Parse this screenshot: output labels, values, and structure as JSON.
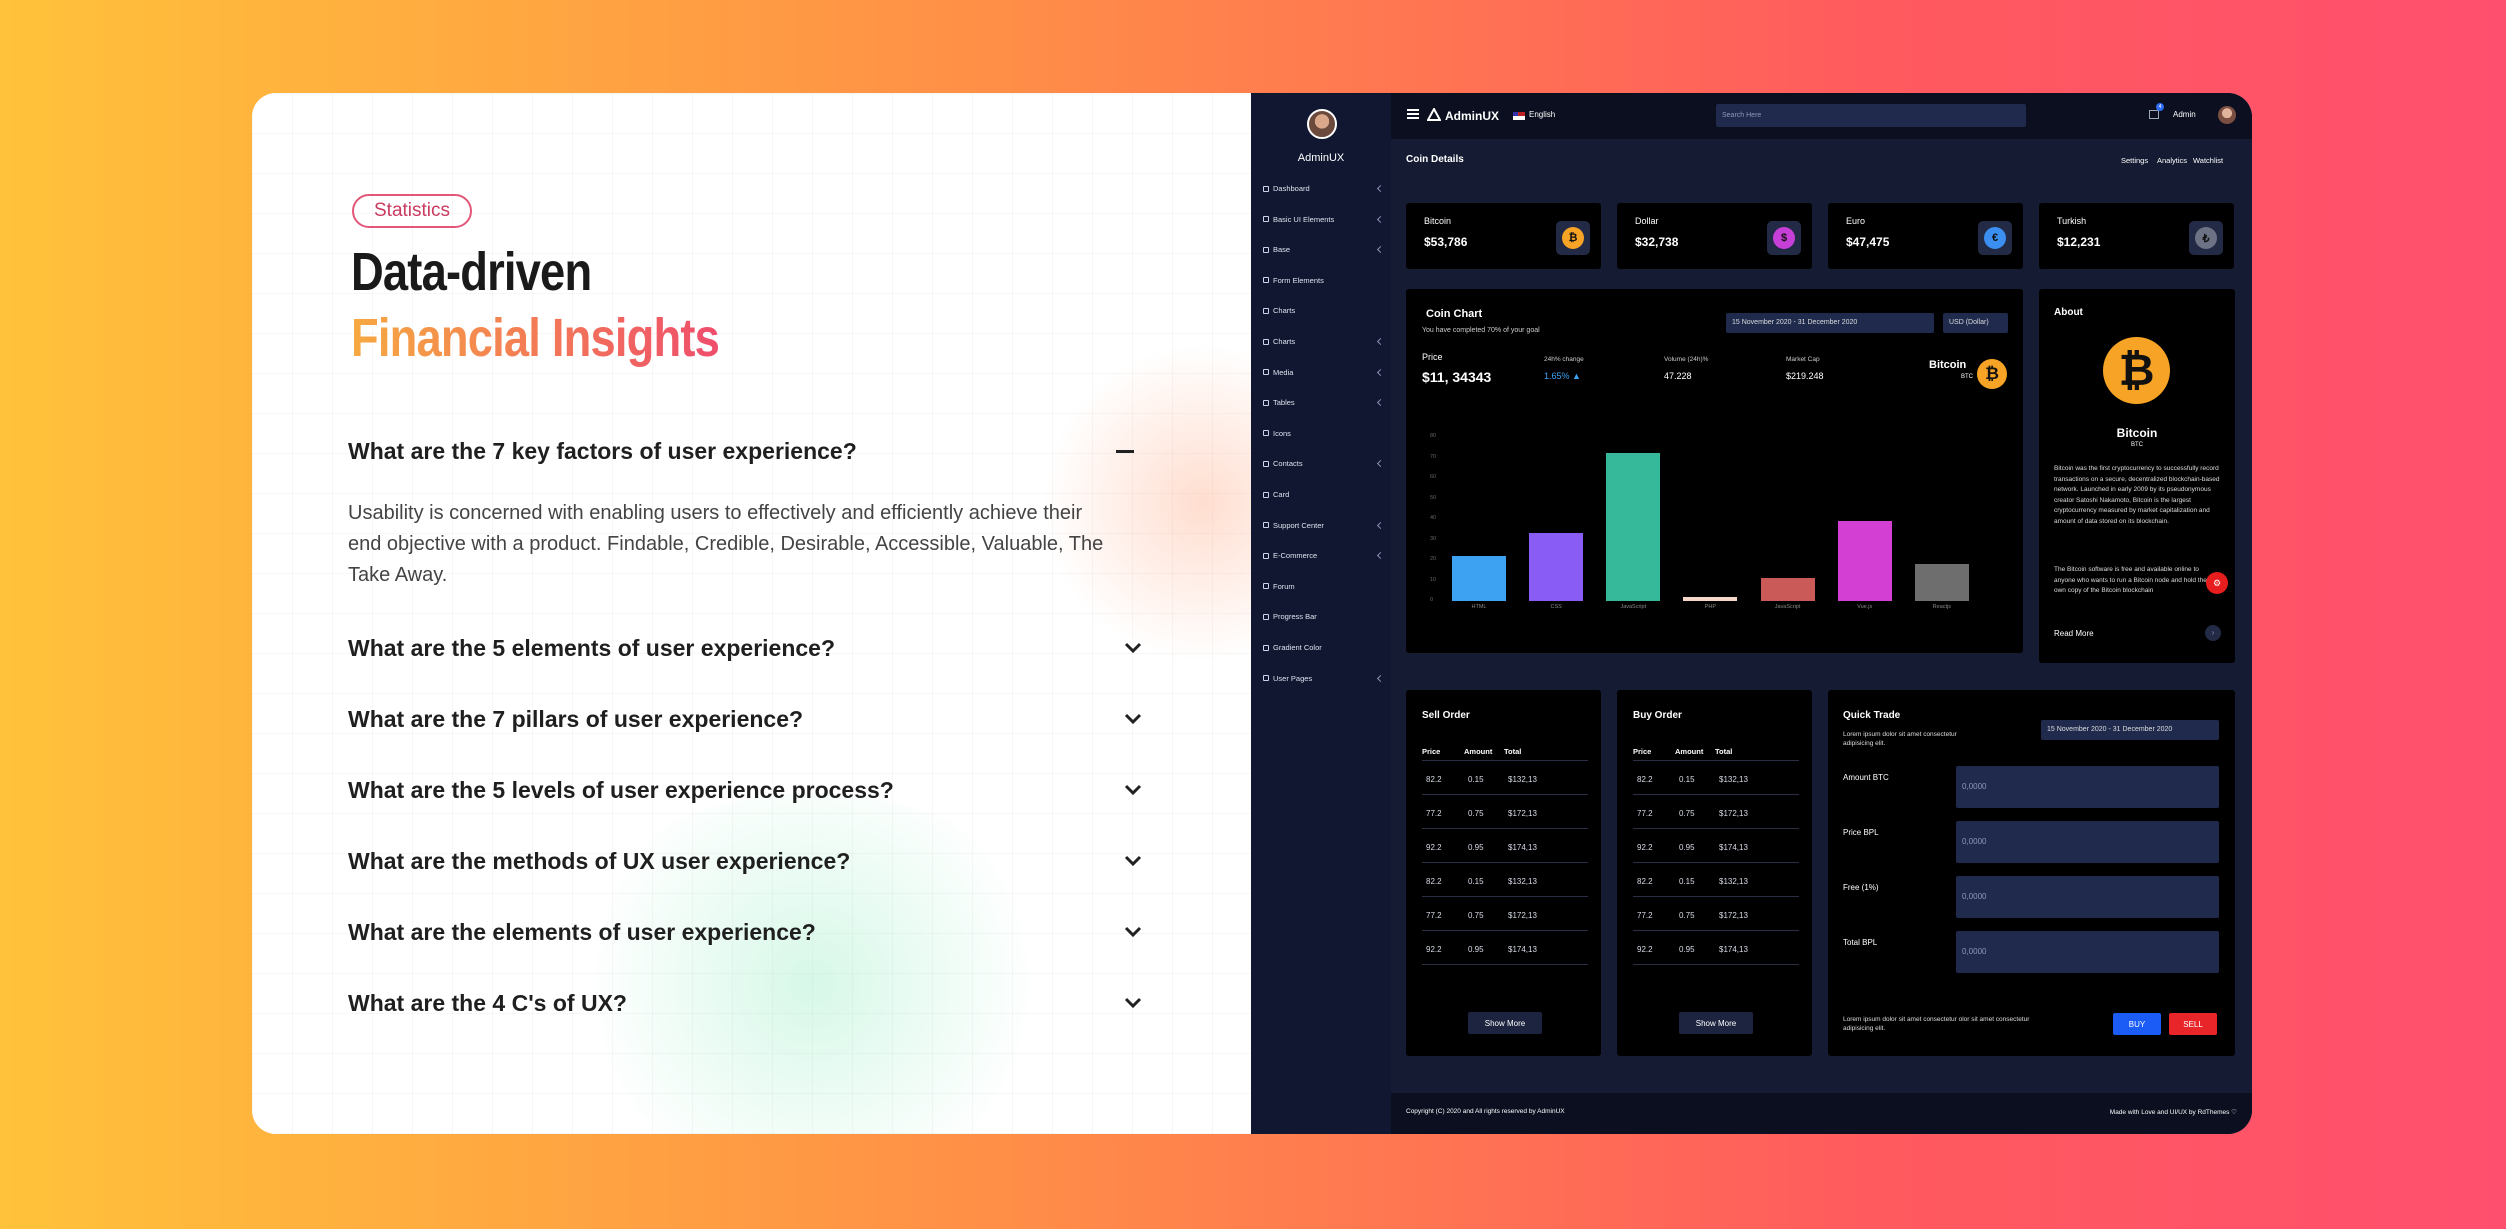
{
  "faq_panel": {
    "tag": "Statistics",
    "title_line1": "Data-driven",
    "title_line2": "Financial Insights",
    "items": [
      {
        "q": "What are the 7 key factors of user experience?",
        "a": "Usability is concerned with enabling users to effectively and efficiently achieve their end objective with a product. Findable, Credible, Desirable, Accessible, Valuable, The Take Away."
      },
      {
        "q": "What are the 5 elements of user experience?"
      },
      {
        "q": "What are the 7 pillars of user experience?"
      },
      {
        "q": "What are the 5 levels of user experience process?"
      },
      {
        "q": "What are the methods of UX user experience?"
      },
      {
        "q": "What are the elements of user experience?"
      },
      {
        "q": "What are the 4 C's of UX?"
      }
    ]
  },
  "dashboard": {
    "brand": "AdminUX",
    "sidebar_user": "AdminUX",
    "language": "English",
    "search_placeholder": "Search Here",
    "admin": "Admin",
    "notification_count": "4",
    "nav": [
      "Dashboard",
      "Basic UI Elements",
      "Base",
      "Form Elements",
      "Charts",
      "Charts",
      "Media",
      "Tables",
      "Icons",
      "Contacts",
      "Card",
      "Support Center",
      "E-Commerce",
      "Forum",
      "Progress Bar",
      "Gradient Color",
      "User Pages"
    ],
    "page_title": "Coin Details",
    "page_links": [
      "Settings",
      "Analytics",
      "Watchlist"
    ],
    "coins": [
      {
        "name": "Bitcoin",
        "value": "$53,786",
        "symbol": "₿",
        "color": "#f7a325"
      },
      {
        "name": "Dollar",
        "value": "$32,738",
        "symbol": "$",
        "color": "#c63fd6"
      },
      {
        "name": "Euro",
        "value": "$47,475",
        "symbol": "€",
        "color": "#3a8ff0"
      },
      {
        "name": "Turkish",
        "value": "$12,231",
        "symbol": "₺",
        "color": "#6d7385"
      }
    ],
    "coin_chart": {
      "title": "Coin Chart",
      "subtitle": "You have completed 70% of your goal",
      "date_range": "15 November 2020 - 31 December 2020",
      "currency": "USD (Dollar)",
      "price_label": "Price",
      "price_value": "$11, 34343",
      "change_label": "24h% change",
      "change_value": "1.65%",
      "volume_label": "Volume (24h)%",
      "volume_value": "47.228",
      "cap_label": "Market Cap",
      "cap_value": "$219.248",
      "coin_name": "Bitcoin",
      "coin_code": "BTC"
    },
    "about": {
      "title": "About",
      "name": "Bitcoin",
      "code": "BTC",
      "p1": "Bitcoin was the first cryptocurrency to successfully record transactions on a secure, decentralized blockchain-based network. Launched in early 2009 by its pseudonymous creator Satoshi Nakamoto, Bitcoin is the largest cryptocurrency measured by market capitalization and amount of data stored on its blockchain.",
      "p2": "The Bitcoin software is free and available online to anyone who wants to run a Bitcoin node and hold their own copy of the Bitcoin blockchain",
      "read_more": "Read More"
    },
    "sell_order": {
      "title": "Sell Order",
      "headers": [
        "Price",
        "Amount",
        "Total"
      ],
      "rows": [
        [
          "82.2",
          "0.15",
          "$132,13"
        ],
        [
          "77.2",
          "0.75",
          "$172,13"
        ],
        [
          "92.2",
          "0.95",
          "$174,13"
        ],
        [
          "82.2",
          "0.15",
          "$132,13"
        ],
        [
          "77.2",
          "0.75",
          "$172,13"
        ],
        [
          "92.2",
          "0.95",
          "$174,13"
        ]
      ],
      "button": "Show More"
    },
    "buy_order": {
      "title": "Buy Order",
      "headers": [
        "Price",
        "Amount",
        "Total"
      ],
      "rows": [
        [
          "82.2",
          "0.15",
          "$132,13"
        ],
        [
          "77.2",
          "0.75",
          "$172,13"
        ],
        [
          "92.2",
          "0.95",
          "$174,13"
        ],
        [
          "82.2",
          "0.15",
          "$132,13"
        ],
        [
          "77.2",
          "0.75",
          "$172,13"
        ],
        [
          "92.2",
          "0.95",
          "$174,13"
        ]
      ],
      "button": "Show More"
    },
    "quick_trade": {
      "title": "Quick Trade",
      "desc": "Lorem ipsum dolor sit amet consectetur adipisicing elit.",
      "date_range": "15 November 2020 - 31 December 2020",
      "fields": [
        {
          "label": "Amount BTC",
          "value": "0,0000"
        },
        {
          "label": "Price BPL",
          "value": "0,0000"
        },
        {
          "label": "Free (1%)",
          "value": "0,0000"
        },
        {
          "label": "Total BPL",
          "value": "0,0000"
        }
      ],
      "footer_text": "Lorem ipsum dolor sit amet consectetur olor sit amet consectetur adipisicing elit.",
      "buy": "BUY",
      "sell": "SELL"
    },
    "footer_left": "Copyright (C) 2020 and All rights reserved by AdminUX",
    "footer_right": "Made with Love and UI/UX by RdThemes ♡"
  },
  "chart_data": {
    "type": "bar",
    "categories": [
      "HTML",
      "CSS",
      "JavaScript",
      "PHP",
      "JavaScript",
      "Vue.js",
      "Reactjs"
    ],
    "values": [
      22,
      33,
      72,
      2,
      11,
      39,
      18
    ],
    "colors": [
      "#3ea2f3",
      "#8a5cf6",
      "#36b99a",
      "#f6d6c8",
      "#c95a57",
      "#d23fd2",
      "#6e6e6e"
    ],
    "ylim": [
      0,
      80
    ],
    "yticks": [
      0,
      10,
      20,
      30,
      40,
      50,
      60,
      70,
      80
    ]
  }
}
